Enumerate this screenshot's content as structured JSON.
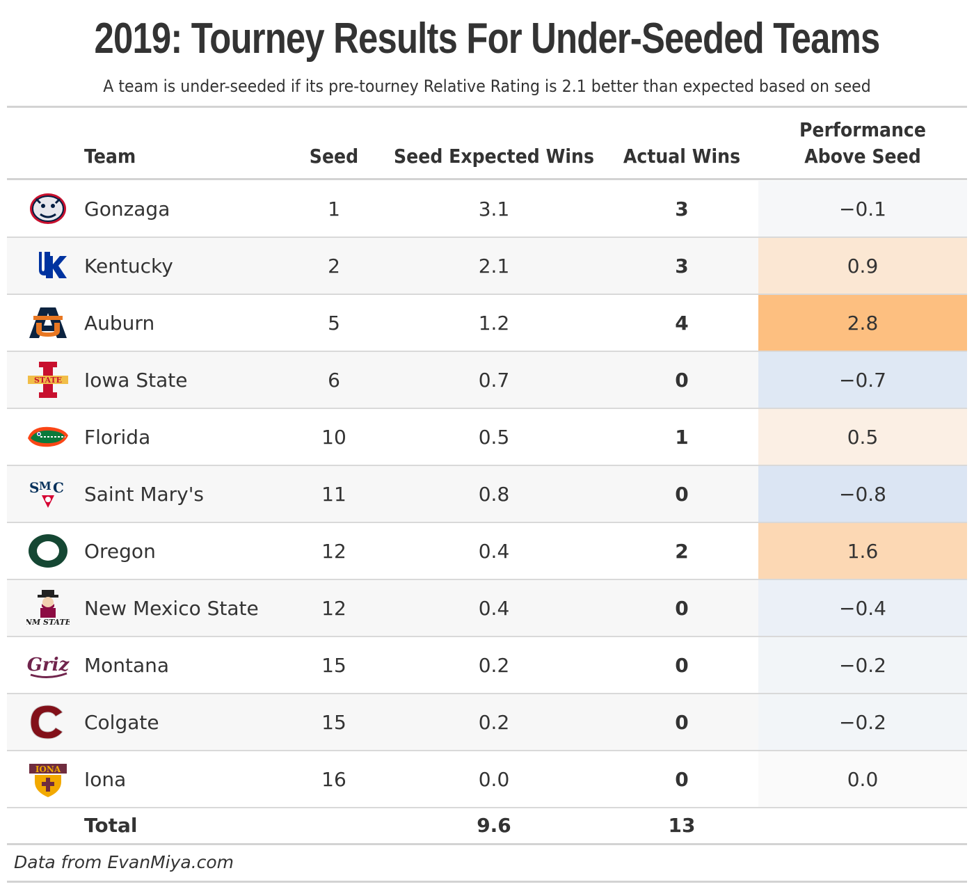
{
  "title": "2019: Tourney Results For Under-Seeded Teams",
  "subtitle": "A team is under-seeded if its pre-tourney Relative Rating is 2.1 better than expected based on seed",
  "columns": {
    "team": "Team",
    "seed": "Seed",
    "expected": "Seed Expected Wins",
    "actual": "Actual Wins",
    "perf_line1": "Performance",
    "perf_line2": "Above Seed"
  },
  "colors": {
    "positive_max": "#fdbf80",
    "negative_max": "#dbe5f3",
    "neutral": "#fafafa"
  },
  "chart_data": {
    "type": "table",
    "rows": [
      {
        "team": "Gonzaga",
        "logo": "gonzaga-bulldog-logo",
        "seed": "1",
        "expected": "3.1",
        "actual": "3",
        "perf": "−0.1",
        "perf_value": -0.1
      },
      {
        "team": "Kentucky",
        "logo": "kentucky-uk-logo",
        "seed": "2",
        "expected": "2.1",
        "actual": "3",
        "perf": "0.9",
        "perf_value": 0.9
      },
      {
        "team": "Auburn",
        "logo": "auburn-au-logo",
        "seed": "5",
        "expected": "1.2",
        "actual": "4",
        "perf": "2.8",
        "perf_value": 2.8
      },
      {
        "team": "Iowa State",
        "logo": "iowa-state-logo",
        "seed": "6",
        "expected": "0.7",
        "actual": "0",
        "perf": "−0.7",
        "perf_value": -0.7
      },
      {
        "team": "Florida",
        "logo": "florida-gator-logo",
        "seed": "10",
        "expected": "0.5",
        "actual": "1",
        "perf": "0.5",
        "perf_value": 0.5
      },
      {
        "team": "Saint Mary's",
        "logo": "saint-marys-smc-logo",
        "seed": "11",
        "expected": "0.8",
        "actual": "0",
        "perf": "−0.8",
        "perf_value": -0.8
      },
      {
        "team": "Oregon",
        "logo": "oregon-o-logo",
        "seed": "12",
        "expected": "0.4",
        "actual": "2",
        "perf": "1.6",
        "perf_value": 1.6
      },
      {
        "team": "New Mexico State",
        "logo": "new-mexico-state-logo",
        "seed": "12",
        "expected": "0.4",
        "actual": "0",
        "perf": "−0.4",
        "perf_value": -0.4
      },
      {
        "team": "Montana",
        "logo": "montana-griz-logo",
        "seed": "15",
        "expected": "0.2",
        "actual": "0",
        "perf": "−0.2",
        "perf_value": -0.2
      },
      {
        "team": "Colgate",
        "logo": "colgate-c-logo",
        "seed": "15",
        "expected": "0.2",
        "actual": "0",
        "perf": "−0.2",
        "perf_value": -0.2
      },
      {
        "team": "Iona",
        "logo": "iona-gaels-logo",
        "seed": "16",
        "expected": "0.0",
        "actual": "0",
        "perf": "0.0",
        "perf_value": 0.0
      }
    ],
    "total": {
      "label": "Total",
      "expected": "9.6",
      "actual": "13"
    }
  },
  "footer": "Data from EvanMiya.com"
}
